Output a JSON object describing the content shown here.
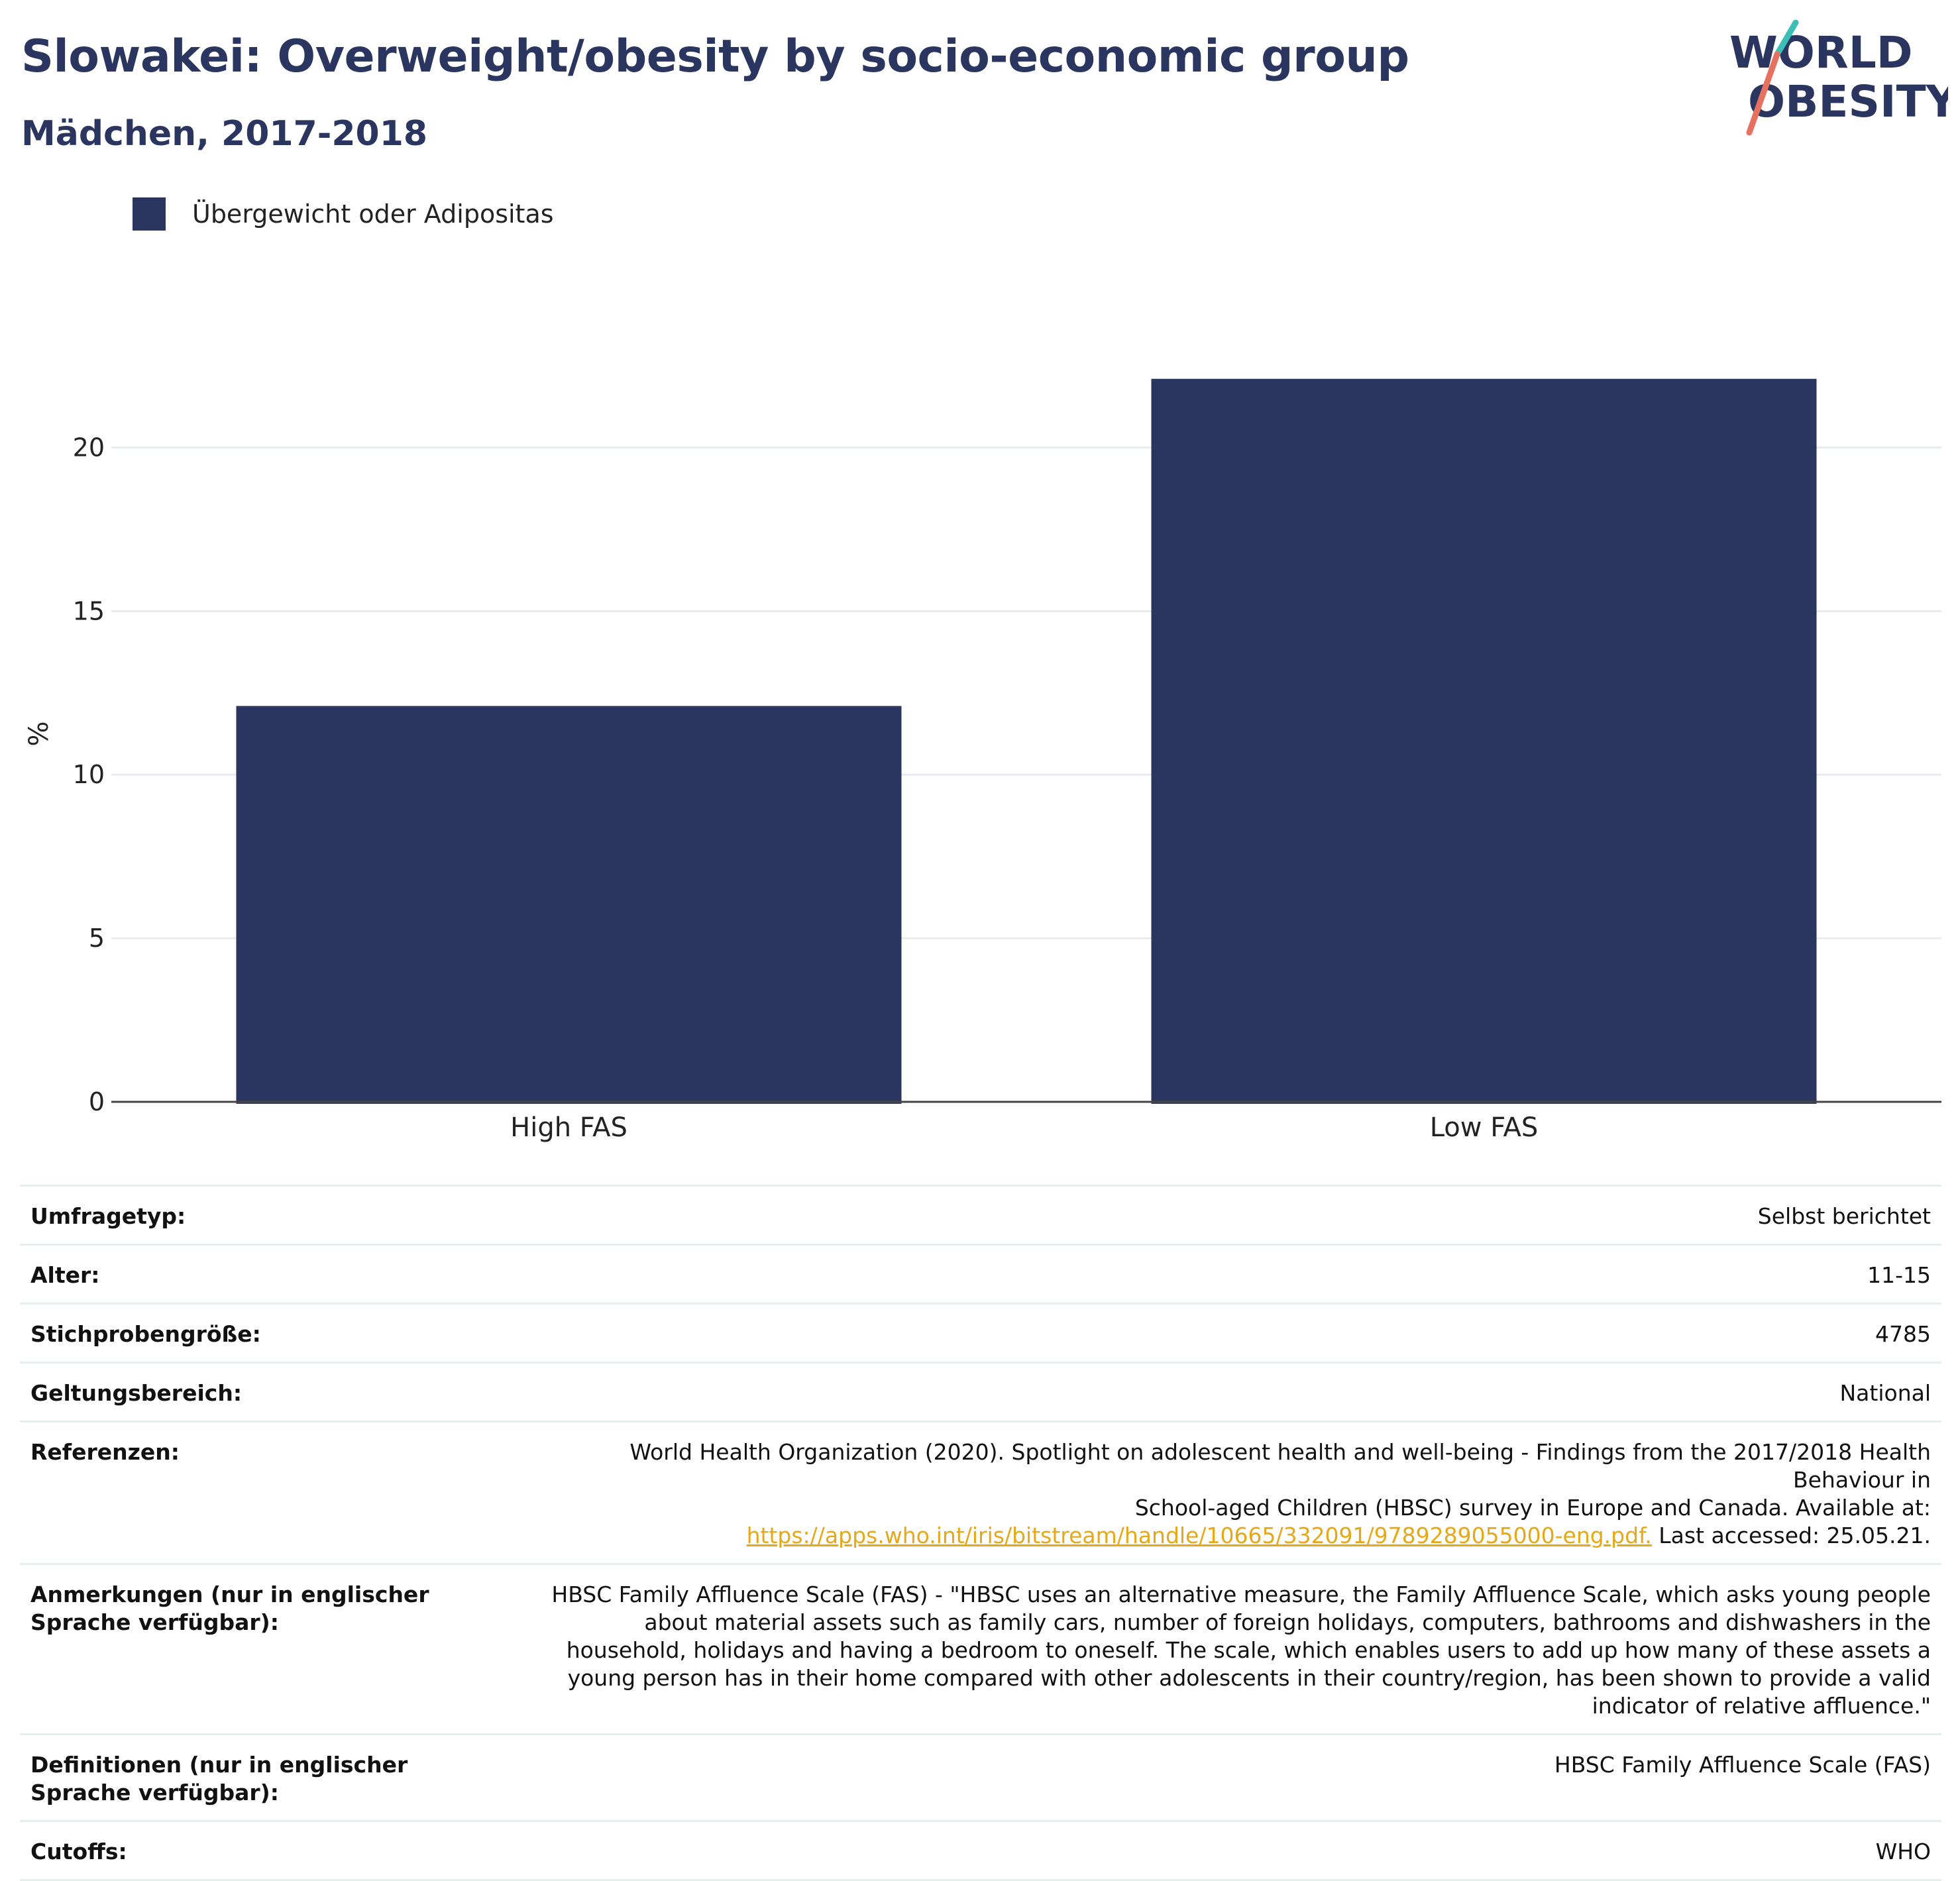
{
  "header": {
    "title": "Slowakei: Overweight/obesity by socio-economic group",
    "subtitle": "Mädchen, 2017-2018"
  },
  "logo": {
    "line1": "WORLD",
    "line2": "OBESITY"
  },
  "colors": {
    "navy": "#2a3560",
    "teal": "#3bbfb7",
    "coral": "#e8705f",
    "link": "#e6a817"
  },
  "chart_data": {
    "type": "bar",
    "categories": [
      "High FAS",
      "Low FAS"
    ],
    "series": [
      {
        "name": "Übergewicht oder Adipositas",
        "values": [
          12.1,
          22.1
        ]
      }
    ],
    "ylabel": "%",
    "ylim": [
      0,
      22.5
    ],
    "yticks": [
      0,
      5,
      10,
      15,
      20
    ],
    "grid": true,
    "legend": "top-left"
  },
  "meta": [
    {
      "key": "Umfragetyp:",
      "value": "Selbst berichtet"
    },
    {
      "key": "Alter:",
      "value": "11-15"
    },
    {
      "key": "Stichprobengröße:",
      "value": "4785"
    },
    {
      "key": "Geltungsbereich:",
      "value": "National"
    },
    {
      "key": "Referenzen:",
      "value_line1": "World Health Organization (2020). Spotlight on adolescent health and well-being - Findings from the 2017/2018 Health Behaviour in",
      "value_line2": "School-aged Children (HBSC) survey in Europe and Canada. Available at:",
      "link": "https://apps.who.int/iris/bitstream/handle/10665/332091/9789289055000-eng.pdf.",
      "value_after": " Last accessed: 25.05.21."
    },
    {
      "key": "Anmerkungen (nur in englischer Sprache verfügbar):",
      "value": "HBSC Family Affluence Scale (FAS) - \"HBSC uses an alternative measure, the Family Affluence Scale, which asks young people about material assets such as family cars, number of foreign holidays, computers, bathrooms and dishwashers in the household, holidays and having a bedroom to oneself. The scale, which enables users to add up how many of these assets a young person has in their home compared with other adolescents in their country/region, has been shown to provide a valid indicator of relative affluence.\""
    },
    {
      "key": "Definitionen (nur in englischer Sprache verfügbar):",
      "value": "HBSC Family Affluence Scale (FAS)"
    },
    {
      "key": "Cutoffs:",
      "value": "WHO"
    }
  ]
}
